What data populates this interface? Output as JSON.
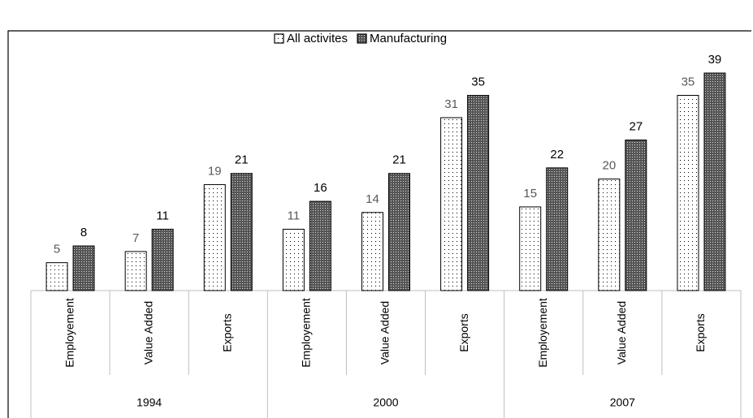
{
  "chart_data": {
    "type": "bar",
    "categories": [
      "Employement",
      "Value Added",
      "Exports",
      "Employement",
      "Value Added",
      "Exports",
      "Employement",
      "Value Added",
      "Exports"
    ],
    "groups": [
      "1994",
      "2000",
      "2007"
    ],
    "series": [
      {
        "name": "All activites",
        "color": "#ffffff",
        "values": [
          5,
          7,
          19,
          11,
          14,
          31,
          15,
          20,
          35
        ]
      },
      {
        "name": "Manufacturing",
        "color": "#555555",
        "values": [
          8,
          11,
          21,
          16,
          21,
          35,
          22,
          27,
          39
        ]
      }
    ],
    "legend": "top",
    "grid": false
  }
}
